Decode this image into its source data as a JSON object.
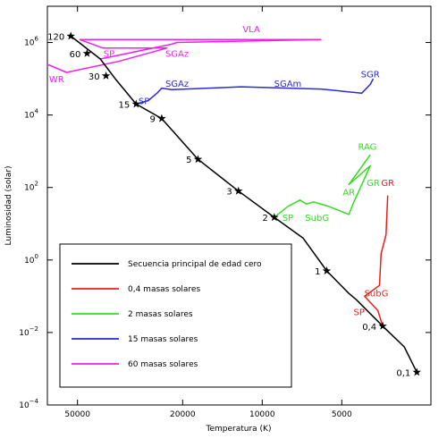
{
  "chart_data": {
    "type": "line",
    "title": "",
    "xlabel": "Temperatura (K)",
    "ylabel": "Luminosidad (solar)",
    "x_scale": "log",
    "x_reversed": true,
    "y_scale": "log",
    "xlim": [
      2300,
      65000
    ],
    "ylim": [
      0.0001,
      10000000
    ],
    "x_ticks": [
      {
        "value": 50000,
        "label": "50000"
      },
      {
        "value": 20000,
        "label": "20000"
      },
      {
        "value": 10000,
        "label": "10000"
      },
      {
        "value": 5000,
        "label": "5000"
      }
    ],
    "y_ticks": [
      {
        "value": 0.0001,
        "base": "10",
        "exp": "−4"
      },
      {
        "value": 0.01,
        "base": "10",
        "exp": "−2"
      },
      {
        "value": 1,
        "base": "10",
        "exp": "0"
      },
      {
        "value": 100,
        "base": "10",
        "exp": "2"
      },
      {
        "value": 10000,
        "base": "10",
        "exp": "4"
      },
      {
        "value": 1000000,
        "base": "10",
        "exp": "6"
      }
    ],
    "legend": {
      "placement": "lower-left",
      "entries": [
        {
          "label": "Secuencia principal de edad cero",
          "color": "#000000"
        },
        {
          "label": "0,4 masas solares",
          "color": "#e8201c"
        },
        {
          "label": "2 masas solares",
          "color": "#33dd22"
        },
        {
          "label": "15 masas solares",
          "color": "#2a2ad6"
        },
        {
          "label": "60 masas solares",
          "color": "#ee20ee"
        }
      ]
    },
    "series": [
      {
        "name": "Secuencia principal de edad cero",
        "color": "#000000",
        "points": [
          [
            53000,
            1500000
          ],
          [
            41000,
            350000
          ],
          [
            36000,
            100000
          ],
          [
            30000,
            20000
          ],
          [
            24000,
            8000
          ],
          [
            17500,
            600
          ],
          [
            12300,
            80
          ],
          [
            9000,
            15
          ],
          [
            7000,
            4
          ],
          [
            5700,
            0.5
          ],
          [
            4700,
            0.12
          ],
          [
            4400,
            0.08
          ],
          [
            3500,
            0.015
          ],
          [
            2900,
            0.004
          ],
          [
            2600,
            0.0008
          ]
        ]
      },
      {
        "name": "0,4 masas solares",
        "color": "#e8201c",
        "points": [
          [
            3500,
            0.015
          ],
          [
            3650,
            0.04
          ],
          [
            4100,
            0.1
          ],
          [
            3600,
            0.2
          ],
          [
            3550,
            1.5
          ],
          [
            3400,
            5
          ],
          [
            3350,
            60
          ]
        ]
      },
      {
        "name": "2 masas solares",
        "color": "#33dd22",
        "points": [
          [
            9000,
            15
          ],
          [
            8000,
            30
          ],
          [
            7200,
            45
          ],
          [
            6800,
            35
          ],
          [
            6400,
            40
          ],
          [
            5600,
            30
          ],
          [
            4700,
            18
          ],
          [
            4500,
            40
          ],
          [
            4200,
            120
          ],
          [
            3900,
            400
          ],
          [
            4700,
            120
          ],
          [
            3900,
            800
          ]
        ]
      },
      {
        "name": "15 masas solares",
        "color": "#2a2ad6",
        "points": [
          [
            30000,
            20000
          ],
          [
            27000,
            25000
          ],
          [
            25000,
            40000
          ],
          [
            24000,
            55000
          ],
          [
            22000,
            50000
          ],
          [
            12000,
            60000
          ],
          [
            6000,
            52000
          ],
          [
            4200,
            40000
          ],
          [
            3900,
            70000
          ],
          [
            3800,
            100000
          ]
        ]
      },
      {
        "name": "60 masas solares",
        "color": "#ee20ee",
        "points": [
          [
            41000,
            350000
          ],
          [
            22000,
            900000
          ],
          [
            21000,
            1000000
          ],
          [
            6000,
            1200000
          ],
          [
            49000,
            1200000
          ],
          [
            40000,
            700000
          ],
          [
            23000,
            700000
          ],
          [
            35000,
            300000
          ],
          [
            55000,
            150000
          ],
          [
            65000,
            250000
          ]
        ]
      }
    ],
    "zams_labels": [
      {
        "label": "120",
        "x": 53000,
        "y": 1500000
      },
      {
        "label": "60",
        "x": 46000,
        "y": 500000
      },
      {
        "label": "30",
        "x": 39000,
        "y": 120000
      },
      {
        "label": "15",
        "x": 30000,
        "y": 20000
      },
      {
        "label": "9",
        "x": 24000,
        "y": 8000
      },
      {
        "label": "5",
        "x": 17500,
        "y": 600
      },
      {
        "label": "3",
        "x": 12300,
        "y": 80
      },
      {
        "label": "2",
        "x": 9000,
        "y": 15
      },
      {
        "label": "1",
        "x": 5700,
        "y": 0.5
      },
      {
        "label": "0,4",
        "x": 3500,
        "y": 0.015
      },
      {
        "label": "0,1",
        "x": 2600,
        "y": 0.0008
      }
    ],
    "annotations": [
      {
        "text": "VLA",
        "color": "#ee20ee",
        "x": 11000,
        "y": 1900000
      },
      {
        "text": "SP",
        "color": "#ee20ee",
        "x": 38000,
        "y": 400000
      },
      {
        "text": "SGAz",
        "color": "#ee20ee",
        "x": 21000,
        "y": 400000
      },
      {
        "text": "WR",
        "color": "#ee20ee",
        "x": 60000,
        "y": 80000
      },
      {
        "text": "SGR",
        "color": "#2a2ad6",
        "x": 3900,
        "y": 110000
      },
      {
        "text": "SGAz",
        "color": "#2a2ad6",
        "x": 21000,
        "y": 60000
      },
      {
        "text": "SGAm",
        "color": "#2a2ad6",
        "x": 8000,
        "y": 60000
      },
      {
        "text": "SP",
        "color": "#2a2ad6",
        "x": 28000,
        "y": 20000
      },
      {
        "text": "RAG",
        "color": "#33dd22",
        "x": 4000,
        "y": 1100
      },
      {
        "text": "AR",
        "color": "#33dd22",
        "x": 4700,
        "y": 60
      },
      {
        "text": "GR",
        "color": "#33dd22",
        "x": 3800,
        "y": 110
      },
      {
        "text": "SP",
        "color": "#33dd22",
        "x": 8000,
        "y": 12
      },
      {
        "text": "SubG",
        "color": "#33dd22",
        "x": 6200,
        "y": 12
      },
      {
        "text": "GR",
        "color": "#e8201c",
        "x": 3350,
        "y": 110
      },
      {
        "text": "SubG",
        "color": "#e8201c",
        "x": 3700,
        "y": 0.1
      },
      {
        "text": "SP",
        "color": "#e8201c",
        "x": 4300,
        "y": 0.03
      }
    ]
  }
}
